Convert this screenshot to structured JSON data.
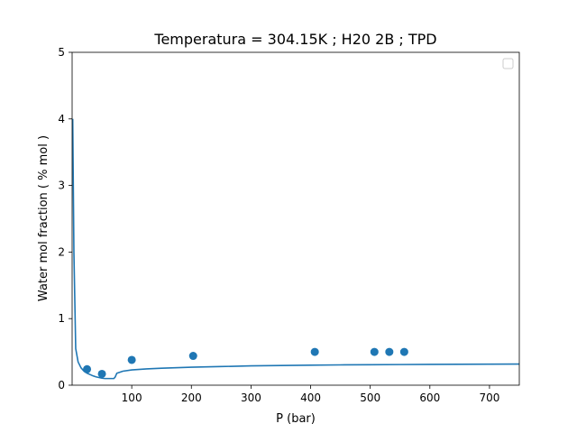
{
  "chart_data": {
    "type": "scatter",
    "title": "Temperatura = 304.15K ; H20 2B ; TPD",
    "xlabel": "P (bar)",
    "ylabel": "Water mol fraction ( % mol )",
    "xlim": [
      0,
      750
    ],
    "ylim": [
      0,
      5
    ],
    "xticks": [
      100,
      200,
      300,
      400,
      500,
      600,
      700
    ],
    "yticks": [
      0,
      1,
      2,
      3,
      4,
      5
    ],
    "grid": false,
    "legend": "top-right (empty)",
    "colors": {
      "series": "#1f77b4"
    },
    "series": [
      {
        "kind": "line",
        "x": [
          1,
          3,
          6,
          10,
          15,
          20,
          25,
          30,
          35,
          40,
          45,
          50,
          55,
          60,
          65,
          70,
          72,
          75,
          85,
          100,
          125,
          150,
          200,
          250,
          300,
          350,
          400,
          450,
          500,
          550,
          600,
          650,
          700,
          750
        ],
        "y": [
          4.0,
          2.0,
          0.55,
          0.35,
          0.26,
          0.21,
          0.18,
          0.16,
          0.14,
          0.125,
          0.115,
          0.105,
          0.1,
          0.1,
          0.1,
          0.1,
          0.12,
          0.18,
          0.21,
          0.23,
          0.245,
          0.255,
          0.27,
          0.28,
          0.29,
          0.295,
          0.3,
          0.305,
          0.308,
          0.31,
          0.312,
          0.314,
          0.316,
          0.318
        ]
      },
      {
        "kind": "scatter",
        "x": [
          25,
          50,
          100,
          203,
          407,
          507,
          532,
          557
        ],
        "y": [
          0.24,
          0.17,
          0.38,
          0.44,
          0.5,
          0.5,
          0.5,
          0.5
        ]
      }
    ]
  }
}
